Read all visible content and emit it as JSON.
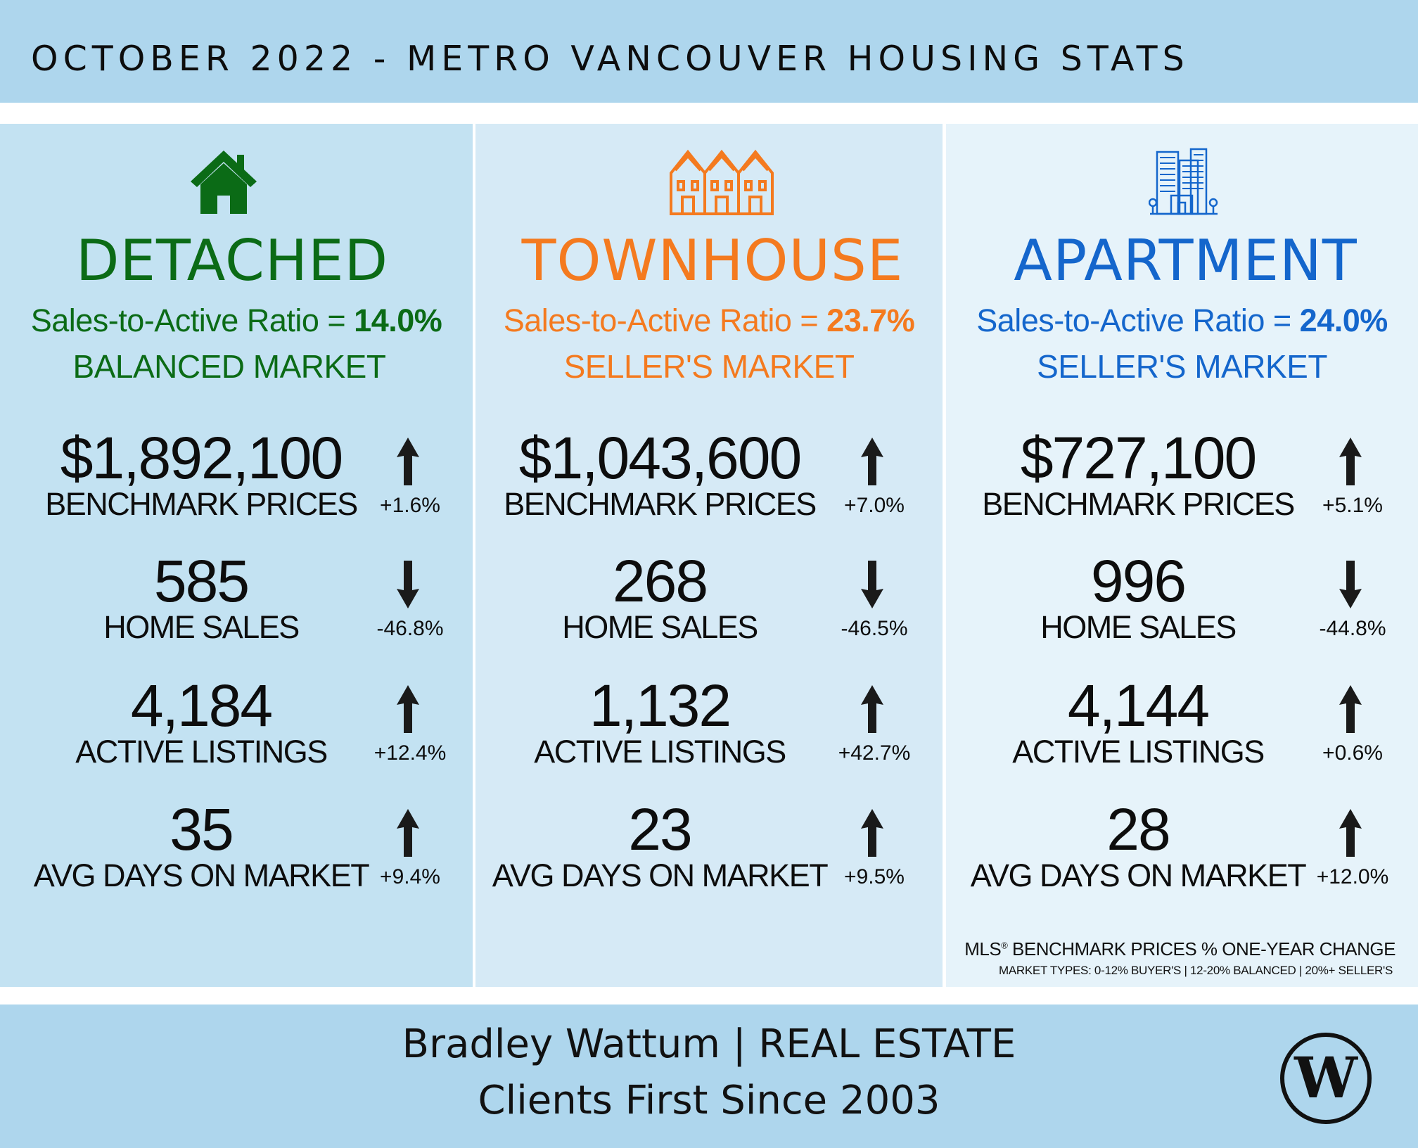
{
  "header": {
    "title": "OCTOBER 2022 - METRO VANCOUVER HOUSING STATS"
  },
  "columns": [
    {
      "type": "DETACHED",
      "icon": "house-icon",
      "color": "#0b6b16",
      "ratio_label": "Sales-to-Active Ratio = ",
      "ratio_value": "14.0%",
      "market": "BALANCED MARKET",
      "stats": [
        {
          "value": "$1,892,100",
          "label": "BENCHMARK PRICES",
          "direction": "up",
          "change": "+1.6%"
        },
        {
          "value": "585",
          "label": "HOME SALES",
          "direction": "down",
          "change": "-46.8%"
        },
        {
          "value": "4,184",
          "label": "ACTIVE LISTINGS",
          "direction": "up",
          "change": "+12.4%"
        },
        {
          "value": "35",
          "label": "AVG DAYS ON MARKET",
          "direction": "up",
          "change": "+9.4%"
        }
      ]
    },
    {
      "type": "TOWNHOUSE",
      "icon": "townhouse-icon",
      "color": "#f47a1f",
      "ratio_label": "Sales-to-Active Ratio = ",
      "ratio_value": "23.7%",
      "market": "SELLER'S MARKET",
      "stats": [
        {
          "value": "$1,043,600",
          "label": "BENCHMARK PRICES",
          "direction": "up",
          "change": "+7.0%"
        },
        {
          "value": "268",
          "label": "HOME SALES",
          "direction": "down",
          "change": "-46.5%"
        },
        {
          "value": "1,132",
          "label": "ACTIVE LISTINGS",
          "direction": "up",
          "change": "+42.7%"
        },
        {
          "value": "23",
          "label": "AVG DAYS ON MARKET",
          "direction": "up",
          "change": "+9.5%"
        }
      ]
    },
    {
      "type": "APARTMENT",
      "icon": "apartment-icon",
      "color": "#1466cc",
      "ratio_label": "Sales-to-Active Ratio = ",
      "ratio_value": "24.0%",
      "market": "SELLER'S MARKET",
      "stats": [
        {
          "value": "$727,100",
          "label": "BENCHMARK PRICES",
          "direction": "up",
          "change": "+5.1%"
        },
        {
          "value": "996",
          "label": "HOME SALES",
          "direction": "down",
          "change": "-44.8%"
        },
        {
          "value": "4,144",
          "label": "ACTIVE LISTINGS",
          "direction": "up",
          "change": "+0.6%"
        },
        {
          "value": "28",
          "label": "AVG DAYS ON MARKET",
          "direction": "up",
          "change": "+12.0%"
        }
      ]
    }
  ],
  "footnote": {
    "line1_a": "MLS",
    "line1_reg": "®",
    "line1_b": " BENCHMARK PRICES % ONE-YEAR CHANGE",
    "line2": "MARKET TYPES: 0-12% BUYER'S | 12-20% BALANCED | 20%+ SELLER'S"
  },
  "footer": {
    "line1": "Bradley Wattum | REAL ESTATE",
    "line2": "Clients First Since 2003",
    "logo_letter": "W"
  }
}
